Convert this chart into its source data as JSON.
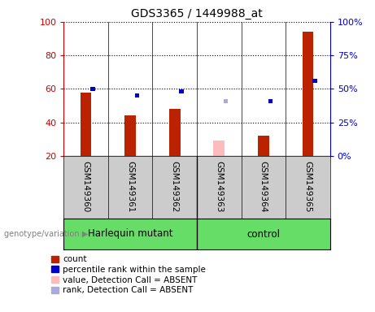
{
  "title": "GDS3365 / 1449988_at",
  "samples": [
    "GSM149360",
    "GSM149361",
    "GSM149362",
    "GSM149363",
    "GSM149364",
    "GSM149365"
  ],
  "count_values": [
    58,
    44,
    48,
    null,
    32,
    94
  ],
  "rank_values": [
    50,
    45,
    48,
    null,
    41,
    56
  ],
  "count_absent": [
    null,
    null,
    null,
    29,
    null,
    null
  ],
  "rank_absent": [
    null,
    null,
    null,
    41,
    null,
    null
  ],
  "group_labels": [
    "Harlequin mutant",
    "control"
  ],
  "ylim_left": [
    20,
    100
  ],
  "ylim_right": [
    0,
    100
  ],
  "yticks_left": [
    20,
    40,
    60,
    80,
    100
  ],
  "yticks_right": [
    0,
    25,
    50,
    75,
    100
  ],
  "bar_color_red": "#bb2200",
  "bar_color_blue": "#0000cc",
  "bar_color_pink": "#ffbbbb",
  "bar_color_lightblue": "#aaaadd",
  "bar_width": 0.25,
  "sample_bg_color": "#cccccc",
  "left_axis_color": "#cc0000",
  "right_axis_color": "#0000cc",
  "legend_items": [
    "count",
    "percentile rank within the sample",
    "value, Detection Call = ABSENT",
    "rank, Detection Call = ABSENT"
  ],
  "legend_colors": [
    "#bb2200",
    "#0000cc",
    "#ffbbbb",
    "#aaaadd"
  ]
}
